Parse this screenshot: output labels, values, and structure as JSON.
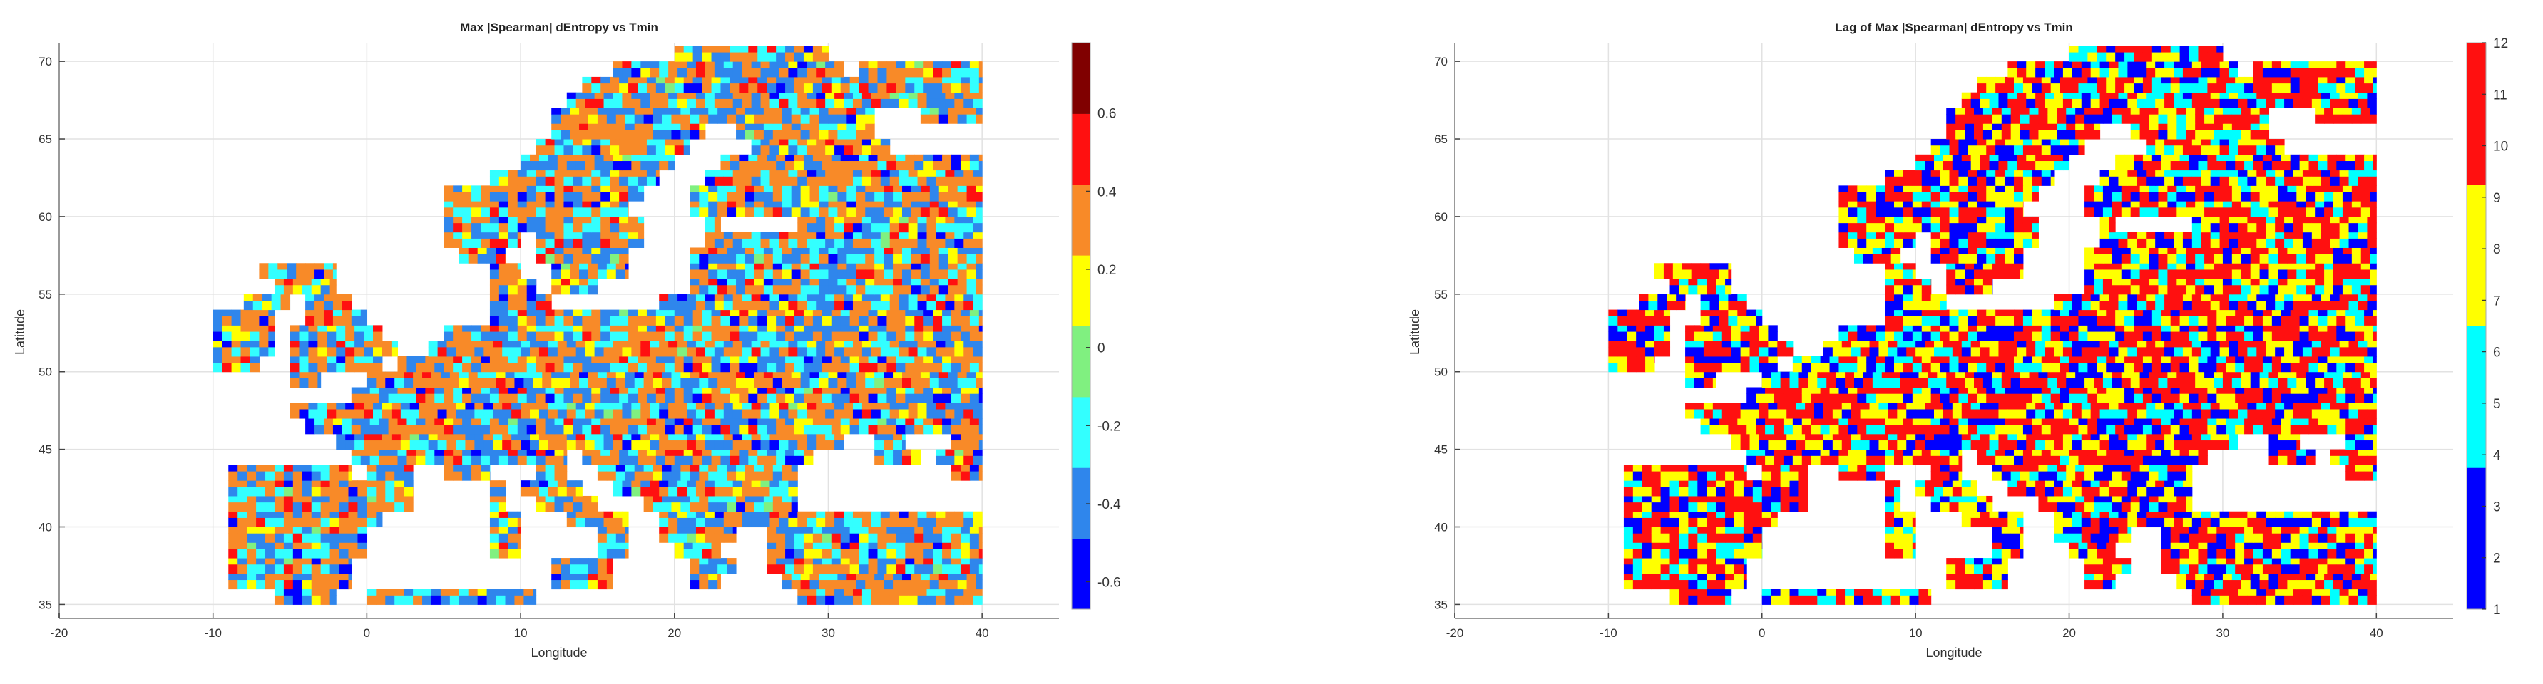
{
  "chart_data": [
    {
      "type": "heatmap",
      "title": "Max |Spearman| dEntropy vs Tmin",
      "xlabel": "Longitude",
      "ylabel": "Latitude",
      "xlim": [
        -20,
        45
      ],
      "ylim": [
        34.1,
        71.2
      ],
      "xticks": [
        -20,
        -10,
        0,
        10,
        20,
        30,
        40
      ],
      "yticks": [
        35,
        40,
        45,
        50,
        55,
        60,
        65,
        70
      ],
      "grid": true,
      "colorbar": {
        "clim": [
          -0.67,
          0.78
        ],
        "ticks": [
          -0.6,
          -0.4,
          -0.2,
          0,
          0.2,
          0.4,
          0.6
        ],
        "tick_labels": [
          "-0.6",
          "-0.4",
          "-0.2",
          "0",
          "0.2",
          "0.4",
          "0.6"
        ],
        "colors": [
          "#0000ff",
          "#2f86ec",
          "#33ffff",
          "#80f080",
          "#ffff00",
          "#f88a28",
          "#ff1010",
          "#800000"
        ]
      },
      "category_weights": [
        0.05,
        0.25,
        0.18,
        0.01,
        0.07,
        0.37,
        0.07,
        0.0
      ]
    },
    {
      "type": "heatmap",
      "title": "Lag of Max |Spearman| dEntropy vs Tmin",
      "xlabel": "Longitude",
      "ylabel": "Latitude",
      "xlim": [
        -20,
        45
      ],
      "ylim": [
        34.1,
        71.2
      ],
      "xticks": [
        -20,
        -10,
        0,
        10,
        20,
        30,
        40
      ],
      "yticks": [
        35,
        40,
        45,
        50,
        55,
        60,
        65,
        70
      ],
      "grid": true,
      "colorbar": {
        "clim": [
          1,
          12
        ],
        "ticks": [
          1,
          2,
          3,
          4,
          5,
          6,
          7,
          8,
          9,
          10,
          11,
          12
        ],
        "tick_labels": [
          "1",
          "2",
          "3",
          "4",
          "5",
          "6",
          "7",
          "8",
          "9",
          "10",
          "11",
          "12"
        ],
        "colors": [
          "#0000ff",
          "#00ffff",
          "#ffff00",
          "#ff1010"
        ]
      },
      "category_weights": [
        0.2,
        0.15,
        0.25,
        0.4
      ]
    }
  ],
  "land_rows": {
    "71": [
      [
        20,
        30
      ]
    ],
    "70": [
      [
        16,
        31
      ],
      [
        32,
        40
      ]
    ],
    "69": [
      [
        14,
        40
      ]
    ],
    "68": [
      [
        13,
        40
      ]
    ],
    "67": [
      [
        12,
        33
      ],
      [
        36,
        40
      ]
    ],
    "66": [
      [
        12,
        22
      ],
      [
        24,
        33
      ]
    ],
    "65": [
      [
        11,
        21
      ],
      [
        25,
        34
      ]
    ],
    "64": [
      [
        10,
        20
      ],
      [
        23,
        40
      ]
    ],
    "63": [
      [
        8,
        19
      ],
      [
        22,
        40
      ]
    ],
    "62": [
      [
        5,
        18
      ],
      [
        21,
        40
      ]
    ],
    "61": [
      [
        5,
        17
      ],
      [
        21,
        40
      ]
    ],
    "60": [
      [
        5,
        18
      ],
      [
        22,
        23
      ],
      [
        28,
        40
      ]
    ],
    "59": [
      [
        5,
        10
      ],
      [
        11,
        18
      ],
      [
        22,
        40
      ]
    ],
    "58": [
      [
        6,
        9
      ],
      [
        11,
        17
      ],
      [
        21,
        40
      ]
    ],
    "57": [
      [
        -7,
        -2
      ],
      [
        8,
        10
      ],
      [
        12,
        17
      ],
      [
        21,
        40
      ]
    ],
    "56": [
      [
        -6,
        -2
      ],
      [
        8,
        11
      ],
      [
        12,
        15
      ],
      [
        21,
        40
      ]
    ],
    "55": [
      [
        -8,
        -5
      ],
      [
        -4,
        -1
      ],
      [
        8,
        12
      ],
      [
        19,
        40
      ]
    ],
    "54": [
      [
        -10,
        -6
      ],
      [
        -4,
        0
      ],
      [
        8,
        40
      ]
    ],
    "53": [
      [
        -10,
        -6
      ],
      [
        -5,
        1
      ],
      [
        5,
        40
      ]
    ],
    "52": [
      [
        -10,
        -6
      ],
      [
        -5,
        2
      ],
      [
        4,
        40
      ]
    ],
    "51": [
      [
        -10,
        -7
      ],
      [
        -5,
        1
      ],
      [
        2,
        40
      ]
    ],
    "50": [
      [
        -5,
        -3
      ],
      [
        0,
        40
      ]
    ],
    "49": [
      [
        -1,
        40
      ]
    ],
    "48": [
      [
        -5,
        40
      ]
    ],
    "47": [
      [
        -4,
        40
      ]
    ],
    "46": [
      [
        -2,
        31
      ],
      [
        33,
        35
      ],
      [
        38,
        40
      ]
    ],
    "45": [
      [
        -1,
        13
      ],
      [
        14,
        29
      ],
      [
        33,
        36
      ],
      [
        37,
        40
      ]
    ],
    "44": [
      [
        -9,
        -1
      ],
      [
        0,
        3
      ],
      [
        5,
        8
      ],
      [
        11,
        13
      ],
      [
        15,
        28
      ],
      [
        38,
        40
      ]
    ],
    "43": [
      [
        -9,
        3
      ],
      [
        8,
        9
      ],
      [
        10,
        14
      ],
      [
        16,
        28
      ]
    ],
    "42": [
      [
        -9,
        3
      ],
      [
        8,
        9
      ],
      [
        11,
        15
      ],
      [
        18,
        28
      ]
    ],
    "41": [
      [
        -9,
        1
      ],
      [
        8,
        10
      ],
      [
        13,
        17
      ],
      [
        19,
        40
      ]
    ],
    "40": [
      [
        -9,
        0
      ],
      [
        8,
        10
      ],
      [
        15,
        17
      ],
      [
        19,
        24
      ],
      [
        26,
        40
      ]
    ],
    "39": [
      [
        -9,
        0
      ],
      [
        8,
        10
      ],
      [
        15,
        17
      ],
      [
        20,
        23
      ],
      [
        26,
        40
      ]
    ],
    "38": [
      [
        -9,
        -1
      ],
      [
        12,
        16
      ],
      [
        21,
        24
      ],
      [
        26,
        40
      ]
    ],
    "37": [
      [
        -9,
        -1
      ],
      [
        12,
        16
      ],
      [
        21,
        23
      ],
      [
        27,
        40
      ]
    ],
    "36": [
      [
        -6,
        -2
      ],
      [
        0,
        11
      ],
      [
        28,
        40
      ]
    ]
  }
}
